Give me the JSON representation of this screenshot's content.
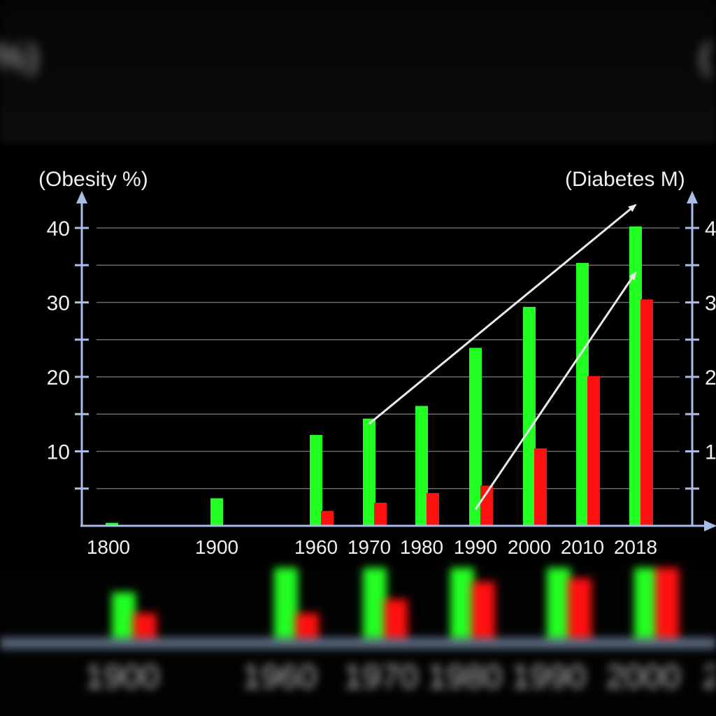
{
  "chart_data": {
    "type": "bar",
    "left_axis_label": "(Obesity %)",
    "right_axis_label": "(Diabetes M)",
    "categories": [
      "1800",
      "1900",
      "1960",
      "1970",
      "1980",
      "1990",
      "2000",
      "2010",
      "2018"
    ],
    "y_ticks": [
      "10",
      "20",
      "30",
      "40"
    ],
    "right_ticks": [
      "1",
      "2",
      "3",
      "4"
    ],
    "ylim": [
      0,
      40
    ],
    "grid": true,
    "series": [
      {
        "values": [
          0.4,
          3.7,
          12.2,
          14.4,
          16.1,
          23.9,
          29.4,
          35.3,
          40.2
        ],
        "color": "#22ff22"
      },
      {
        "values": [
          null,
          null,
          2.0,
          3.1,
          4.4,
          5.4,
          10.4,
          20.1,
          30.4
        ],
        "color": "#ff1010"
      }
    ],
    "trend_arrows": [
      {
        "from": [
          1970,
          13.7
        ],
        "to": [
          2018,
          43.1
        ]
      },
      {
        "from": [
          1990,
          2.2
        ],
        "to": [
          2018,
          34.0
        ]
      }
    ],
    "colors": {
      "axis": "#a9bde6",
      "grid": "#6a6a6a",
      "text": "#f0f0f0",
      "arrow": "#eaeaea"
    },
    "reflection": {
      "categories": [
        "1900",
        "1960",
        "1970",
        "1980",
        "1990",
        "2000",
        "2"
      ]
    }
  }
}
